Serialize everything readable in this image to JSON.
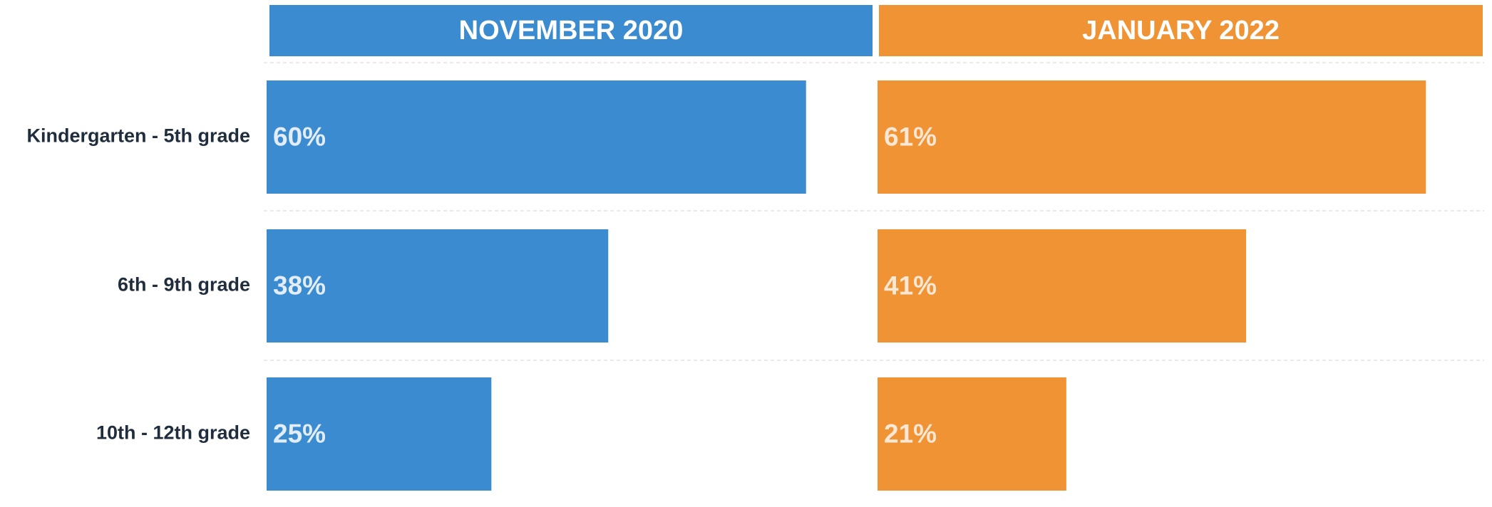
{
  "chart_data": {
    "type": "bar",
    "orientation": "horizontal",
    "categories": [
      "Kindergarten - 5th grade",
      "6th - 9th grade",
      "10th - 12th grade"
    ],
    "series": [
      {
        "name": "NOVEMBER 2020",
        "color": "#3a8bd0",
        "values": [
          60,
          38,
          25
        ],
        "value_labels": [
          "60%",
          "38%",
          "25%"
        ]
      },
      {
        "name": "JANUARY 2022",
        "color": "#f09335",
        "values": [
          61,
          41,
          21
        ],
        "value_labels": [
          "61%",
          "41%",
          "21%"
        ]
      }
    ],
    "xlim": [
      0,
      67
    ]
  }
}
